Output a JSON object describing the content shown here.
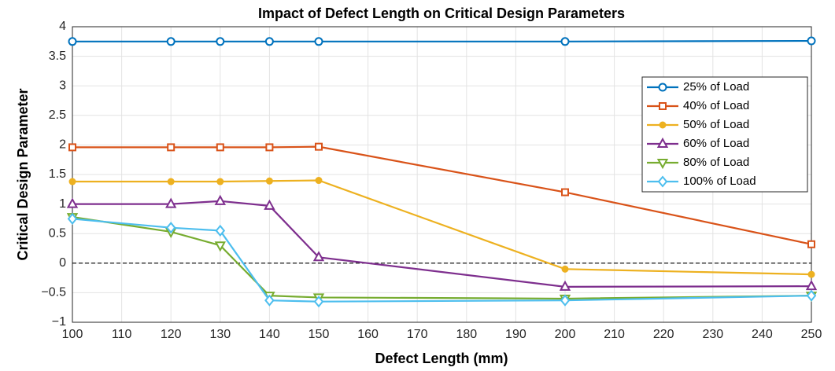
{
  "chart_data": {
    "type": "line",
    "title": "Impact of Defect Length on Critical Design Parameters",
    "xlabel": "Defect Length (mm)",
    "ylabel": "Critical Design Parameter",
    "x": [
      100,
      120,
      130,
      140,
      150,
      200,
      250
    ],
    "series": [
      {
        "name": "25% of Load",
        "color": "#0072BD",
        "marker": "circle",
        "values": [
          3.75,
          3.75,
          3.75,
          3.75,
          3.75,
          3.75,
          3.76
        ]
      },
      {
        "name": "40% of Load",
        "color": "#D95319",
        "marker": "square",
        "values": [
          1.96,
          1.96,
          1.96,
          1.96,
          1.97,
          1.2,
          0.32
        ]
      },
      {
        "name": "50% of Load",
        "color": "#EDB120",
        "marker": "dot",
        "values": [
          1.38,
          1.38,
          1.38,
          1.39,
          1.4,
          -0.1,
          -0.19
        ]
      },
      {
        "name": "60% of Load",
        "color": "#7E2F8E",
        "marker": "triangle-up",
        "values": [
          1.0,
          1.0,
          1.05,
          0.97,
          0.1,
          -0.4,
          -0.39
        ]
      },
      {
        "name": "80% of Load",
        "color": "#77AC30",
        "marker": "triangle-down",
        "values": [
          0.78,
          0.53,
          0.3,
          -0.55,
          -0.58,
          -0.6,
          -0.55
        ]
      },
      {
        "name": "100% of Load",
        "color": "#4DBEEE",
        "marker": "diamond",
        "values": [
          0.75,
          0.6,
          0.55,
          -0.63,
          -0.65,
          -0.63,
          -0.55
        ]
      }
    ],
    "xlim": [
      100,
      250
    ],
    "xticks": [
      100,
      110,
      120,
      130,
      140,
      150,
      160,
      170,
      180,
      190,
      200,
      210,
      220,
      230,
      240,
      250
    ],
    "ylim": [
      -1,
      4
    ],
    "yticks": [
      {
        "value": -1,
        "label": "−1"
      },
      {
        "value": -0.5,
        "label": "−0.5"
      },
      0,
      0.5,
      1,
      1.5,
      2,
      2.5,
      3,
      3.5,
      4
    ],
    "hline": 0,
    "grid": true,
    "legend": "upper right"
  }
}
